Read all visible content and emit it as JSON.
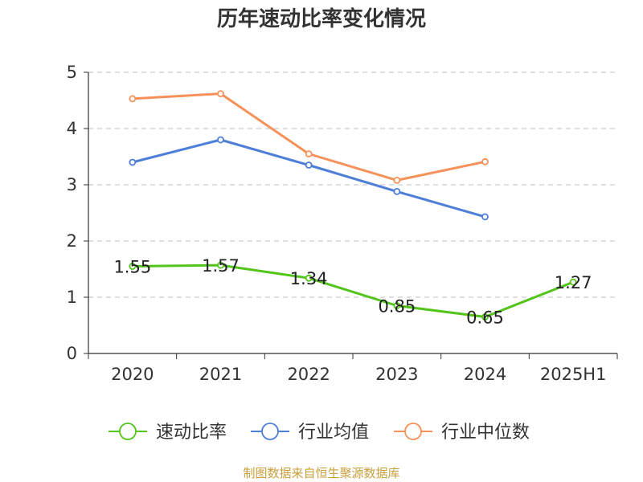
{
  "chart_data": {
    "type": "line",
    "title": "历年速动比率变化情况",
    "categories": [
      "2020",
      "2021",
      "2022",
      "2023",
      "2024",
      "2025H1"
    ],
    "ylim": [
      0,
      5
    ],
    "yticks": [
      "0",
      "1",
      "2",
      "3",
      "4",
      "5"
    ],
    "grid": true,
    "legend_position": "bottom",
    "series": [
      {
        "name": "速动比率",
        "color": "#52c41a",
        "values": [
          1.55,
          1.57,
          1.34,
          0.85,
          0.65,
          1.27
        ],
        "labels": [
          "1.55",
          "1.57",
          "1.34",
          "0.85",
          "0.65",
          "1.27"
        ]
      },
      {
        "name": "行业均值",
        "color": "#4e7fd8",
        "values": [
          3.4,
          3.8,
          3.35,
          2.88,
          2.43,
          null
        ]
      },
      {
        "name": "行业中位数",
        "color": "#f6915a",
        "values": [
          4.53,
          4.62,
          3.55,
          3.08,
          3.41,
          null
        ]
      }
    ]
  },
  "source": "制图数据来自恒生聚源数据库"
}
